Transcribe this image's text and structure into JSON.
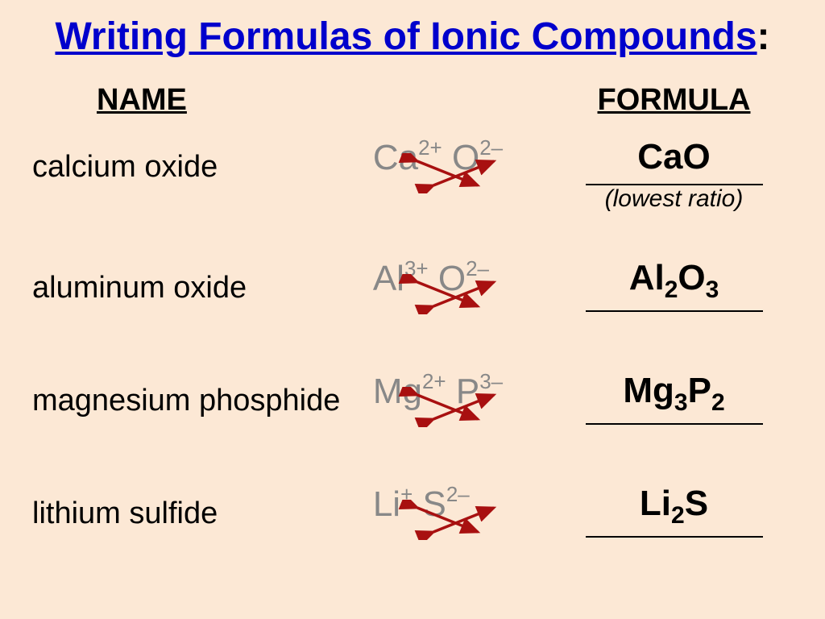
{
  "title_text": "Writing Formulas of Ionic Compounds",
  "title_colon": ":",
  "headers": {
    "name": "NAME",
    "formula": "FORMULA"
  },
  "note_text": "(lowest ratio)",
  "colors": {
    "background": "#fce8d5",
    "title": "#0000cc",
    "ion_grey": "#888888",
    "arrow": "#a81010",
    "text": "#000000"
  },
  "rows": [
    {
      "name": "calcium oxide",
      "cation": "Ca",
      "cation_charge": "2+",
      "anion": "O",
      "anion_charge": "2–",
      "formula_parts": [
        [
          "Ca",
          ""
        ],
        [
          "O",
          ""
        ]
      ],
      "has_note": true
    },
    {
      "name": "aluminum oxide",
      "cation": "Al",
      "cation_charge": "3+",
      "anion": "O",
      "anion_charge": "2–",
      "formula_parts": [
        [
          "Al",
          "2"
        ],
        [
          "O",
          "3"
        ]
      ],
      "has_note": false
    },
    {
      "name": "magnesium phosphide",
      "cation": "Mg",
      "cation_charge": "2+",
      "anion": "P",
      "anion_charge": "3–",
      "formula_parts": [
        [
          "Mg",
          "3"
        ],
        [
          "P",
          "2"
        ]
      ],
      "has_note": false
    },
    {
      "name": "lithium sulfide",
      "cation": "Li",
      "cation_charge": "+",
      "anion": "S",
      "anion_charge": "2–",
      "formula_parts": [
        [
          "Li",
          "2"
        ],
        [
          "S",
          ""
        ]
      ],
      "has_note": false
    }
  ]
}
